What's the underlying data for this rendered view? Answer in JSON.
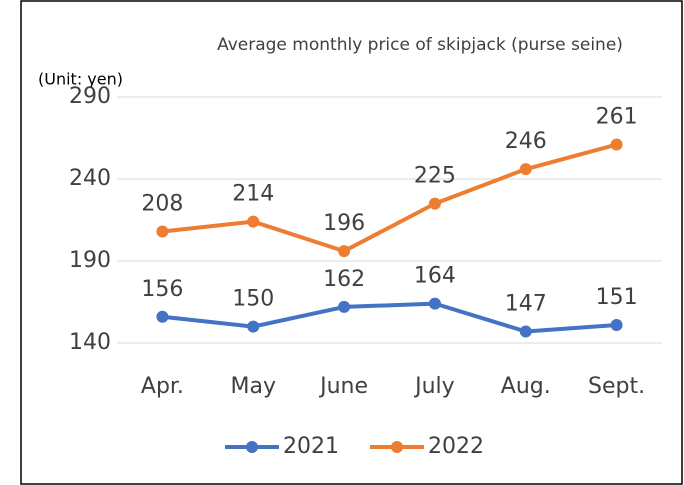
{
  "chart_data": {
    "type": "line",
    "title": "Average monthly price of skipjack (purse seine)",
    "annotation": "(Unit: yen)",
    "categories": [
      "Apr.",
      "May",
      "June",
      "July",
      "Aug.",
      "Sept."
    ],
    "series": [
      {
        "name": "2021",
        "color": "#4472c4",
        "values": [
          156,
          150,
          162,
          164,
          147,
          151
        ]
      },
      {
        "name": "2022",
        "color": "#ed7d31",
        "values": [
          208,
          214,
          196,
          225,
          246,
          261
        ]
      }
    ],
    "ylim": [
      140,
      290
    ],
    "yticks": [
      140,
      190,
      240,
      290
    ],
    "grid": true,
    "legend": "bottom"
  }
}
